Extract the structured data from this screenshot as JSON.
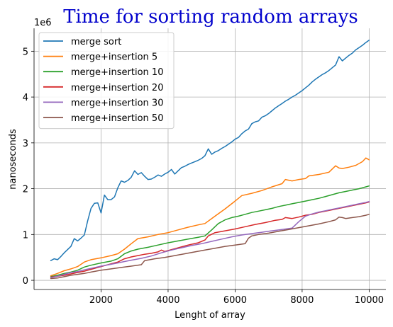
{
  "chart_data": {
    "type": "line",
    "title": "Time for sorting random arrays",
    "title_color": "#0000cc",
    "xlabel": "Lenght of array",
    "ylabel": "nanoseconds",
    "y_scale_label": "1e6",
    "xlim": [
      0,
      10500
    ],
    "ylim": [
      -0.2,
      5.5
    ],
    "x_ticks": [
      2000,
      4000,
      6000,
      8000,
      10000
    ],
    "x_tick_labels": [
      "2000",
      "4000",
      "6000",
      "8000",
      "10000"
    ],
    "y_ticks": [
      0,
      1,
      2,
      3,
      4,
      5
    ],
    "y_tick_labels": [
      "0",
      "1",
      "2",
      "3",
      "4",
      "5"
    ],
    "grid": true,
    "legend_position": "upper-left",
    "series": [
      {
        "name": "merge sort",
        "color": "#1f77b4",
        "x": [
          500,
          600,
          700,
          800,
          900,
          1000,
          1100,
          1200,
          1300,
          1400,
          1500,
          1600,
          1700,
          1800,
          1900,
          2000,
          2100,
          2200,
          2300,
          2400,
          2500,
          2600,
          2700,
          2800,
          2900,
          3000,
          3100,
          3200,
          3300,
          3400,
          3500,
          3600,
          3700,
          3800,
          3900,
          4000,
          4100,
          4200,
          4300,
          4400,
          4500,
          4600,
          4700,
          4800,
          4900,
          5000,
          5100,
          5200,
          5300,
          5400,
          5500,
          5600,
          5700,
          5800,
          5900,
          6000,
          6100,
          6200,
          6300,
          6400,
          6500,
          6600,
          6700,
          6800,
          6900,
          7000,
          7100,
          7200,
          7300,
          7400,
          7500,
          7600,
          7700,
          7800,
          7900,
          8000,
          8100,
          8200,
          8300,
          8400,
          8500,
          8600,
          8700,
          8800,
          8900,
          9000,
          9100,
          9200,
          9300,
          9400,
          9500,
          9600,
          9700,
          9800,
          9900,
          10000
        ],
        "y": [
          0.43,
          0.47,
          0.45,
          0.52,
          0.6,
          0.67,
          0.74,
          0.91,
          0.86,
          0.92,
          0.99,
          1.3,
          1.57,
          1.68,
          1.69,
          1.47,
          1.86,
          1.76,
          1.76,
          1.82,
          2.02,
          2.17,
          2.14,
          2.18,
          2.25,
          2.39,
          2.31,
          2.35,
          2.27,
          2.2,
          2.21,
          2.25,
          2.3,
          2.27,
          2.32,
          2.36,
          2.42,
          2.32,
          2.39,
          2.46,
          2.49,
          2.53,
          2.56,
          2.59,
          2.62,
          2.66,
          2.72,
          2.87,
          2.75,
          2.8,
          2.83,
          2.88,
          2.92,
          2.97,
          3.02,
          3.08,
          3.12,
          3.2,
          3.26,
          3.3,
          3.42,
          3.46,
          3.48,
          3.56,
          3.59,
          3.64,
          3.7,
          3.76,
          3.81,
          3.86,
          3.91,
          3.95,
          4.0,
          4.04,
          4.09,
          4.14,
          4.2,
          4.26,
          4.33,
          4.39,
          4.44,
          4.49,
          4.53,
          4.58,
          4.64,
          4.7,
          4.88,
          4.79,
          4.85,
          4.91,
          4.96,
          5.03,
          5.08,
          5.13,
          5.19,
          5.24
        ]
      },
      {
        "name": "merge+insertion 5",
        "color": "#ff7f0e",
        "x": [
          500,
          700,
          900,
          1100,
          1300,
          1500,
          1700,
          2000,
          2300,
          2500,
          2700,
          2900,
          3100,
          3400,
          3700,
          4000,
          4300,
          4600,
          4900,
          5100,
          5400,
          5700,
          6000,
          6200,
          6500,
          6800,
          7100,
          7400,
          7500,
          7700,
          7900,
          8100,
          8200,
          8500,
          8800,
          9000,
          9100,
          9200,
          9400,
          9600,
          9800,
          9900,
          10000
        ],
        "y": [
          0.1,
          0.15,
          0.21,
          0.25,
          0.3,
          0.4,
          0.45,
          0.49,
          0.54,
          0.58,
          0.68,
          0.8,
          0.91,
          0.95,
          1.0,
          1.04,
          1.1,
          1.16,
          1.21,
          1.24,
          1.4,
          1.56,
          1.73,
          1.85,
          1.9,
          1.96,
          2.04,
          2.11,
          2.2,
          2.17,
          2.2,
          2.22,
          2.28,
          2.31,
          2.36,
          2.5,
          2.45,
          2.44,
          2.47,
          2.51,
          2.59,
          2.67,
          2.63
        ]
      },
      {
        "name": "merge+insertion 10",
        "color": "#2ca02c",
        "x": [
          500,
          700,
          900,
          1100,
          1300,
          1500,
          1700,
          2000,
          2300,
          2500,
          2700,
          2900,
          3100,
          3400,
          3700,
          4000,
          4300,
          4600,
          4900,
          5100,
          5300,
          5500,
          5700,
          5900,
          6100,
          6300,
          6500,
          6700,
          6900,
          7100,
          7300,
          7500,
          7700,
          7900,
          8100,
          8300,
          8500,
          8700,
          8900,
          9100,
          9300,
          9500,
          9700,
          9900,
          10000
        ],
        "y": [
          0.08,
          0.11,
          0.15,
          0.18,
          0.22,
          0.29,
          0.33,
          0.38,
          0.42,
          0.47,
          0.58,
          0.64,
          0.68,
          0.72,
          0.77,
          0.82,
          0.86,
          0.9,
          0.94,
          0.97,
          1.1,
          1.24,
          1.32,
          1.37,
          1.4,
          1.44,
          1.48,
          1.51,
          1.54,
          1.57,
          1.61,
          1.64,
          1.67,
          1.7,
          1.73,
          1.76,
          1.79,
          1.83,
          1.87,
          1.91,
          1.94,
          1.97,
          2.0,
          2.04,
          2.06
        ]
      },
      {
        "name": "merge+insertion 20",
        "color": "#d62728",
        "x": [
          500,
          700,
          900,
          1100,
          1300,
          1500,
          1700,
          2000,
          2300,
          2500,
          2700,
          2900,
          3100,
          3300,
          3500,
          3700,
          3800,
          3900,
          4000,
          4300,
          4600,
          4900,
          5100,
          5200,
          5400,
          5700,
          6000,
          6300,
          6600,
          6900,
          7200,
          7400,
          7500,
          7700,
          7900,
          8100,
          8300,
          8500,
          8700,
          8900,
          9100,
          9300,
          9500,
          9700,
          9900,
          10000
        ],
        "y": [
          0.07,
          0.09,
          0.11,
          0.14,
          0.17,
          0.2,
          0.24,
          0.3,
          0.36,
          0.4,
          0.47,
          0.51,
          0.54,
          0.57,
          0.59,
          0.62,
          0.66,
          0.63,
          0.65,
          0.71,
          0.77,
          0.82,
          0.88,
          0.97,
          1.04,
          1.08,
          1.12,
          1.17,
          1.22,
          1.26,
          1.31,
          1.33,
          1.37,
          1.35,
          1.38,
          1.42,
          1.44,
          1.48,
          1.51,
          1.54,
          1.57,
          1.6,
          1.63,
          1.66,
          1.69,
          1.71
        ]
      },
      {
        "name": "merge+insertion 30",
        "color": "#9467bd",
        "x": [
          500,
          700,
          900,
          1100,
          1300,
          1500,
          1700,
          2000,
          2300,
          2500,
          2700,
          2900,
          3200,
          3500,
          3800,
          4100,
          4400,
          4700,
          5000,
          5300,
          5600,
          5900,
          6200,
          6500,
          6800,
          7100,
          7400,
          7700,
          7900,
          8100,
          8300,
          8500,
          8700,
          8900,
          9100,
          9300,
          9500,
          9700,
          9900,
          10000
        ],
        "y": [
          0.06,
          0.09,
          0.13,
          0.17,
          0.19,
          0.23,
          0.26,
          0.31,
          0.35,
          0.38,
          0.41,
          0.44,
          0.48,
          0.53,
          0.6,
          0.66,
          0.71,
          0.76,
          0.8,
          0.85,
          0.9,
          0.95,
          0.99,
          1.02,
          1.05,
          1.08,
          1.11,
          1.14,
          1.28,
          1.4,
          1.45,
          1.49,
          1.52,
          1.55,
          1.58,
          1.61,
          1.64,
          1.67,
          1.7,
          1.72
        ]
      },
      {
        "name": "merge+insertion 50",
        "color": "#8c564b",
        "x": [
          500,
          700,
          900,
          1100,
          1300,
          1500,
          1700,
          2000,
          2300,
          2600,
          2900,
          3200,
          3300,
          3600,
          3900,
          4200,
          4500,
          4800,
          5100,
          5400,
          5700,
          6000,
          6300,
          6400,
          6500,
          6700,
          7000,
          7300,
          7600,
          7900,
          8200,
          8500,
          8800,
          9000,
          9100,
          9200,
          9300,
          9500,
          9700,
          9900,
          10000
        ],
        "y": [
          0.04,
          0.05,
          0.08,
          0.11,
          0.13,
          0.15,
          0.18,
          0.22,
          0.25,
          0.28,
          0.31,
          0.34,
          0.43,
          0.47,
          0.5,
          0.54,
          0.58,
          0.62,
          0.66,
          0.7,
          0.74,
          0.77,
          0.8,
          0.92,
          0.97,
          1.0,
          1.03,
          1.07,
          1.11,
          1.15,
          1.19,
          1.23,
          1.28,
          1.32,
          1.38,
          1.37,
          1.35,
          1.37,
          1.39,
          1.42,
          1.44
        ]
      }
    ]
  }
}
